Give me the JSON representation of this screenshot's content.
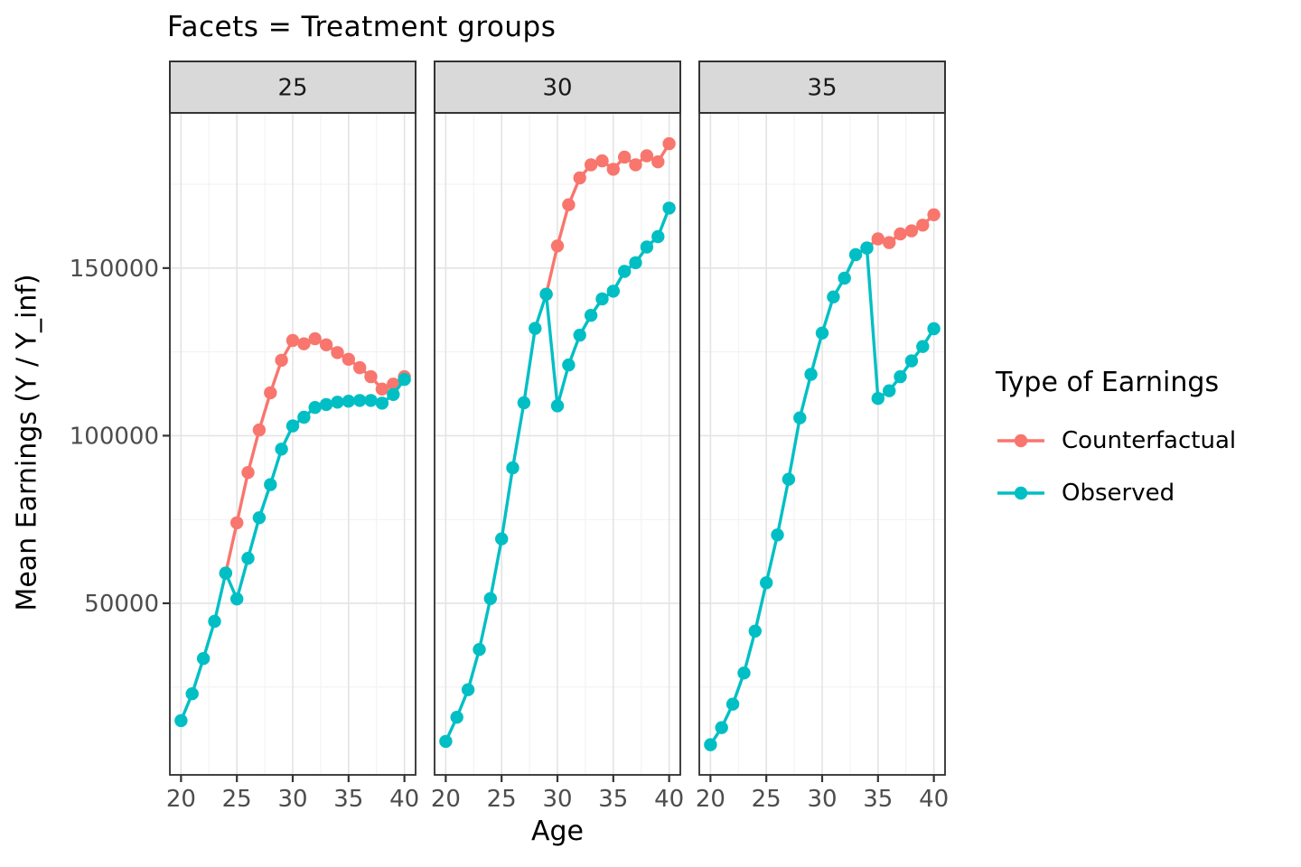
{
  "title": "Facets = Treatment groups",
  "x_axis": {
    "label": "Age",
    "ticks": [
      20,
      25,
      30,
      35,
      40
    ],
    "minor_ticks": [
      22.5,
      27.5,
      32.5,
      37.5
    ],
    "range": [
      19,
      41
    ]
  },
  "y_axis": {
    "label": "Mean Earnings (Y / Y_inf)",
    "ticks": [
      50000,
      100000,
      150000
    ],
    "tick_labels": [
      "50000",
      "100000",
      "150000"
    ],
    "minor_ticks": [
      25000,
      75000,
      125000,
      175000
    ],
    "range": [
      -1200,
      196300
    ]
  },
  "legend": {
    "title": "Type of Earnings",
    "items": [
      {
        "label": "Counterfactual",
        "color": "#F8766D"
      },
      {
        "label": "Observed",
        "color": "#00BFC4"
      }
    ]
  },
  "colors": {
    "counterfactual": "#F8766D",
    "observed": "#00BFC4",
    "strip_fill": "#D9D9D9",
    "strip_border": "#333333",
    "panel_border": "#2e2e2e",
    "grid_major": "#e4e4e4",
    "grid_minor": "#f1f1f1",
    "tick_text": "#4d4d4d",
    "strip_text": "#1a1a1a"
  },
  "chart_data": {
    "type": "line",
    "title": "Facets = Treatment groups",
    "xlabel": "Age",
    "ylabel": "Mean Earnings (Y / Y_inf)",
    "facet_labels": [
      "25",
      "30",
      "35"
    ],
    "legend_position": "right",
    "grid": true,
    "facets": [
      {
        "label": "25",
        "series": [
          {
            "name": "Counterfactual",
            "color": "#F8766D",
            "x": [
              24,
              25,
              26,
              27,
              28,
              29,
              30,
              31,
              32,
              33,
              34,
              35,
              36,
              37,
              38,
              39,
              40
            ],
            "y": [
              59000,
              74000,
              89000,
              101700,
              112800,
              122500,
              128400,
              127400,
              128900,
              127100,
              124800,
              122800,
              120300,
              117600,
              113900,
              115400,
              117600
            ]
          },
          {
            "name": "Observed",
            "color": "#00BFC4",
            "x": [
              20,
              21,
              22,
              23,
              24,
              25,
              26,
              27,
              28,
              29,
              30,
              31,
              32,
              33,
              34,
              35,
              36,
              37,
              38,
              39,
              40
            ],
            "y": [
              15000,
              23000,
              33500,
              44600,
              59000,
              51300,
              63400,
              75500,
              85400,
              96000,
              102900,
              105500,
              108400,
              109300,
              110000,
              110300,
              110500,
              110500,
              109700,
              112300,
              116800
            ]
          }
        ]
      },
      {
        "label": "30",
        "series": [
          {
            "name": "Counterfactual",
            "color": "#F8766D",
            "x": [
              29,
              30,
              31,
              32,
              33,
              34,
              35,
              36,
              37,
              38,
              39,
              40
            ],
            "y": [
              142200,
              156600,
              168900,
              176900,
              180800,
              182000,
              179500,
              183100,
              180800,
              183500,
              181700,
              187100
            ]
          },
          {
            "name": "Observed",
            "color": "#00BFC4",
            "x": [
              20,
              21,
              22,
              23,
              24,
              25,
              26,
              27,
              28,
              29,
              30,
              31,
              32,
              33,
              34,
              35,
              36,
              37,
              38,
              39,
              40
            ],
            "y": [
              8800,
              16000,
              24200,
              36200,
              51400,
              69200,
              90400,
              109800,
              132000,
              142200,
              108900,
              121100,
              130000,
              135900,
              140800,
              143100,
              149000,
              151600,
              156300,
              159400,
              167900
            ]
          }
        ]
      },
      {
        "label": "35",
        "series": [
          {
            "name": "Counterfactual",
            "color": "#F8766D",
            "x": [
              34,
              35,
              36,
              37,
              38,
              39,
              40
            ],
            "y": [
              156000,
              158700,
              157600,
              160200,
              161100,
              162800,
              165900
            ]
          },
          {
            "name": "Observed",
            "color": "#00BFC4",
            "x": [
              20,
              21,
              22,
              23,
              24,
              25,
              26,
              27,
              28,
              29,
              30,
              31,
              32,
              33,
              34,
              35,
              36,
              37,
              38,
              39,
              40
            ],
            "y": [
              7800,
              12900,
              19900,
              29200,
              41700,
              56100,
              70400,
              87000,
              105300,
              118300,
              130600,
              141400,
              147000,
              154000,
              156000,
              111100,
              113400,
              117600,
              122300,
              126600,
              131900
            ]
          }
        ]
      }
    ]
  }
}
